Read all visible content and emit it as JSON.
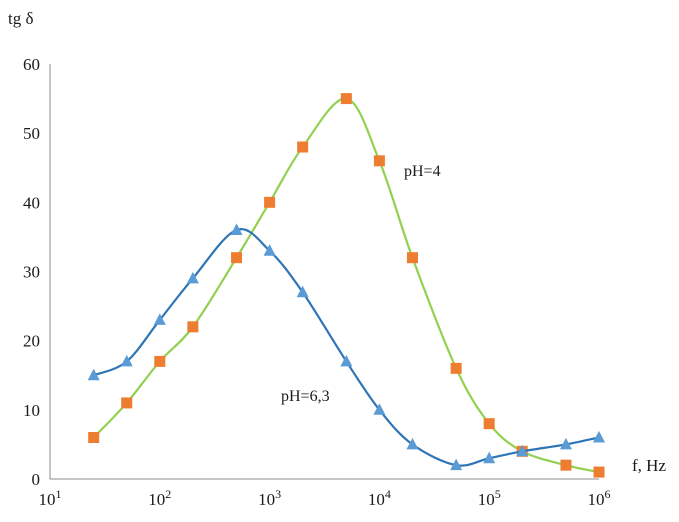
{
  "chart_data": {
    "type": "scatter",
    "title": "",
    "ylabel": "tg δ",
    "xlabel": "f, Hz",
    "x_scale": "log",
    "xlim": [
      10,
      1000000
    ],
    "ylim": [
      0,
      60
    ],
    "yticks": [
      "0",
      "10",
      "20",
      "30",
      "40",
      "50",
      "60"
    ],
    "xticks": [
      {
        "value": 10,
        "base": "10",
        "exp": "1"
      },
      {
        "value": 100,
        "base": "10",
        "exp": "2"
      },
      {
        "value": 1000,
        "base": "10",
        "exp": "3"
      },
      {
        "value": 10000,
        "base": "10",
        "exp": "4"
      },
      {
        "value": 100000,
        "base": "10",
        "exp": "5"
      },
      {
        "value": 1000000,
        "base": "10",
        "exp": "6"
      }
    ],
    "grid": false,
    "series": [
      {
        "name": "pH=4",
        "marker": "square",
        "marker_color": "#ED7D31",
        "line_color": "#92D050",
        "x": [
          25,
          50,
          100,
          200,
          500,
          1000,
          2000,
          5000,
          10000,
          20000,
          50000,
          100000,
          200000,
          500000,
          1000000
        ],
        "y": [
          6,
          11,
          17,
          22,
          32,
          40,
          48,
          55,
          46,
          32,
          16,
          8,
          4,
          2,
          1
        ]
      },
      {
        "name": "pH=6,3",
        "marker": "triangle",
        "marker_color": "#5B9BD5",
        "line_color": "#2E75B6",
        "x": [
          25,
          50,
          100,
          200,
          500,
          1000,
          2000,
          5000,
          10000,
          20000,
          50000,
          100000,
          200000,
          500000,
          1000000
        ],
        "y": [
          15,
          17,
          23,
          29,
          36,
          33,
          27,
          17,
          10,
          5,
          2,
          3,
          4,
          5,
          6
        ]
      }
    ]
  }
}
